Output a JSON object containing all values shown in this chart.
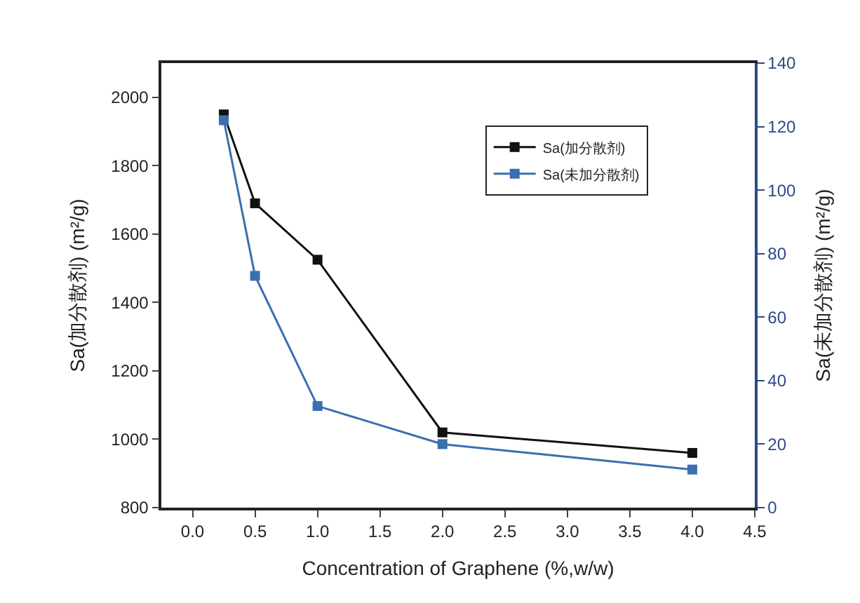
{
  "chart_data": {
    "type": "line",
    "xlabel": "Concentration of Graphene (%,w/w)",
    "ylabel": "Sa(加分散剂) (m²/g)",
    "y2label": "Sa(未加分散剂) (m²/g)",
    "x": [
      0.25,
      0.5,
      1.0,
      2.0,
      4.0
    ],
    "series": [
      {
        "name": "Sa(加分散剂)",
        "color": "#111111",
        "values": [
          1950,
          1690,
          1525,
          1020,
          960
        ]
      },
      {
        "name": "Sa(未加分散剂)",
        "color": "#3a6fb0",
        "axis": "y2",
        "values": [
          122,
          73,
          32,
          20,
          12
        ]
      }
    ],
    "xlim": [
      -0.25,
      4.5
    ],
    "xticks": [
      {
        "value": 0,
        "label": "0.0"
      },
      0.5,
      {
        "value": 1,
        "label": "1.0"
      },
      1.5,
      {
        "value": 2,
        "label": "2.0"
      },
      2.5,
      {
        "value": 3,
        "label": "3.0"
      },
      3.5,
      {
        "value": 4,
        "label": "4.0"
      },
      4.5
    ],
    "ylim": [
      800,
      2100
    ],
    "yticks": [
      800,
      1000,
      1200,
      1400,
      1600,
      1800,
      2000
    ],
    "y2lim": [
      0,
      140
    ],
    "y2ticks": [
      0,
      20,
      40,
      60,
      80,
      100,
      120,
      140
    ],
    "legend": "top right",
    "marker": "square",
    "line_style": "solid"
  }
}
